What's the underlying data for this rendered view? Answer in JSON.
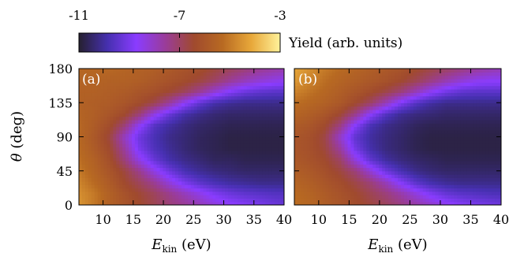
{
  "chart_data": [
    {
      "type": "heatmap",
      "panel_label": "(a)",
      "xlabel_main": "E",
      "xlabel_sub": "kin",
      "xlabel_unit": " (eV)",
      "ylabel_symbol": "θ",
      "ylabel_unit": " (deg)",
      "xlim": [
        6,
        40
      ],
      "ylim": [
        0,
        180
      ],
      "x_ticks": [
        10,
        15,
        20,
        25,
        30,
        35,
        40
      ],
      "y_ticks": [
        0,
        45,
        90,
        135,
        180
      ],
      "x": [
        6,
        8.5,
        11,
        13.5,
        16,
        18.5,
        21,
        23.5,
        26,
        28.5,
        31,
        33.5,
        36,
        38.5,
        40
      ],
      "y": [
        0,
        15,
        30,
        45,
        60,
        75,
        90,
        105,
        120,
        135,
        150,
        165,
        180
      ],
      "z": [
        [
          -4.5,
          -5.0,
          -5.6,
          -6.0,
          -6.4,
          -6.8,
          -7.2,
          -7.5,
          -7.9,
          -8.3,
          -8.6,
          -8.8,
          -9.0,
          -9.2,
          -9.3
        ],
        [
          -4.6,
          -5.0,
          -5.6,
          -6.1,
          -6.5,
          -6.9,
          -7.4,
          -7.9,
          -8.4,
          -8.9,
          -9.2,
          -9.4,
          -9.5,
          -9.6,
          -9.6
        ],
        [
          -4.8,
          -5.3,
          -5.8,
          -6.4,
          -6.9,
          -7.5,
          -8.3,
          -9.0,
          -9.5,
          -9.8,
          -10.0,
          -10.1,
          -10.2,
          -10.2,
          -10.2
        ],
        [
          -5.0,
          -5.5,
          -6.0,
          -6.6,
          -7.4,
          -8.4,
          -9.2,
          -9.8,
          -10.1,
          -10.3,
          -10.4,
          -10.5,
          -10.5,
          -10.5,
          -10.5
        ],
        [
          -5.2,
          -5.6,
          -6.2,
          -7.2,
          -8.4,
          -9.3,
          -9.9,
          -10.2,
          -10.4,
          -10.6,
          -10.6,
          -10.7,
          -10.7,
          -10.7,
          -10.7
        ],
        [
          -5.3,
          -5.8,
          -6.4,
          -7.6,
          -9.0,
          -9.7,
          -10.1,
          -10.4,
          -10.6,
          -10.7,
          -10.8,
          -10.8,
          -10.8,
          -10.8,
          -10.8
        ],
        [
          -5.4,
          -5.9,
          -6.6,
          -8.0,
          -9.2,
          -9.8,
          -10.2,
          -10.4,
          -10.6,
          -10.7,
          -10.8,
          -10.8,
          -10.8,
          -10.8,
          -10.8
        ],
        [
          -5.4,
          -5.8,
          -6.3,
          -7.2,
          -8.6,
          -9.6,
          -10.0,
          -10.3,
          -10.5,
          -10.6,
          -10.7,
          -10.7,
          -10.7,
          -10.7,
          -10.7
        ],
        [
          -5.5,
          -5.7,
          -6.0,
          -6.4,
          -7.2,
          -8.4,
          -9.3,
          -9.9,
          -10.2,
          -10.4,
          -10.5,
          -10.5,
          -10.5,
          -10.5,
          -10.5
        ],
        [
          -5.6,
          -5.7,
          -5.8,
          -6.0,
          -6.3,
          -6.8,
          -7.6,
          -8.6,
          -9.4,
          -9.9,
          -10.1,
          -10.2,
          -10.2,
          -10.2,
          -10.2
        ],
        [
          -5.6,
          -5.6,
          -5.7,
          -5.8,
          -6.0,
          -6.2,
          -6.5,
          -6.9,
          -7.5,
          -8.2,
          -8.8,
          -9.2,
          -9.4,
          -9.5,
          -9.5
        ],
        [
          -5.5,
          -5.5,
          -5.6,
          -5.6,
          -5.7,
          -5.9,
          -6.1,
          -6.3,
          -6.6,
          -7.0,
          -7.5,
          -7.9,
          -8.2,
          -8.4,
          -8.5
        ],
        [
          -5.4,
          -5.4,
          -5.4,
          -5.5,
          -5.6,
          -5.7,
          -5.9,
          -6.1,
          -6.3,
          -6.6,
          -6.9,
          -7.2,
          -7.5,
          -7.7,
          -7.8
        ]
      ]
    },
    {
      "type": "heatmap",
      "panel_label": "(b)",
      "xlabel_main": "E",
      "xlabel_sub": "kin",
      "xlabel_unit": " (eV)",
      "xlim": [
        6,
        40
      ],
      "ylim": [
        0,
        180
      ],
      "x_ticks": [
        10,
        15,
        20,
        25,
        30,
        35,
        40
      ],
      "x": [
        6,
        8.5,
        11,
        13.5,
        16,
        18.5,
        21,
        23.5,
        26,
        28.5,
        31,
        33.5,
        36,
        38.5,
        40
      ],
      "y": [
        0,
        15,
        30,
        45,
        60,
        75,
        90,
        105,
        120,
        135,
        150,
        165,
        180
      ],
      "z": [
        [
          -5.2,
          -5.4,
          -5.7,
          -6.0,
          -6.3,
          -6.6,
          -6.9,
          -7.3,
          -7.7,
          -8.1,
          -8.5,
          -8.8,
          -9.0,
          -9.1,
          -9.2
        ],
        [
          -5.3,
          -5.5,
          -5.8,
          -6.1,
          -6.4,
          -6.8,
          -7.2,
          -7.7,
          -8.3,
          -8.9,
          -9.3,
          -9.5,
          -9.6,
          -9.7,
          -9.7
        ],
        [
          -5.5,
          -5.7,
          -6.0,
          -6.3,
          -6.7,
          -7.2,
          -7.9,
          -8.8,
          -9.5,
          -9.9,
          -10.1,
          -10.2,
          -10.2,
          -10.2,
          -10.2
        ],
        [
          -5.7,
          -5.9,
          -6.2,
          -6.6,
          -7.2,
          -8.2,
          -9.2,
          -9.8,
          -10.2,
          -10.4,
          -10.5,
          -10.5,
          -10.5,
          -10.5,
          -10.5
        ],
        [
          -5.9,
          -6.1,
          -6.4,
          -7.0,
          -8.3,
          -9.4,
          -10.0,
          -10.3,
          -10.5,
          -10.6,
          -10.7,
          -10.7,
          -10.7,
          -10.7,
          -10.7
        ],
        [
          -6.0,
          -6.2,
          -6.6,
          -7.6,
          -9.1,
          -9.9,
          -10.3,
          -10.5,
          -10.7,
          -10.8,
          -10.8,
          -10.8,
          -10.8,
          -10.8,
          -10.8
        ],
        [
          -6.0,
          -6.2,
          -6.7,
          -8.1,
          -9.4,
          -10.0,
          -10.3,
          -10.5,
          -10.7,
          -10.8,
          -10.8,
          -10.8,
          -10.8,
          -10.8,
          -10.8
        ],
        [
          -5.8,
          -6.0,
          -6.4,
          -7.3,
          -8.8,
          -9.8,
          -10.2,
          -10.4,
          -10.6,
          -10.7,
          -10.7,
          -10.7,
          -10.7,
          -10.7,
          -10.7
        ],
        [
          -5.5,
          -5.7,
          -6.0,
          -6.5,
          -7.4,
          -8.7,
          -9.6,
          -10.1,
          -10.3,
          -10.4,
          -10.5,
          -10.5,
          -10.5,
          -10.5,
          -10.5
        ],
        [
          -5.2,
          -5.4,
          -5.6,
          -5.9,
          -6.4,
          -7.0,
          -7.9,
          -8.9,
          -9.6,
          -10.0,
          -10.2,
          -10.2,
          -10.2,
          -10.2,
          -10.2
        ],
        [
          -4.8,
          -5.1,
          -5.4,
          -5.7,
          -6.0,
          -6.3,
          -6.7,
          -7.2,
          -7.9,
          -8.6,
          -9.1,
          -9.4,
          -9.5,
          -9.5,
          -9.5
        ],
        [
          -4.4,
          -4.8,
          -5.2,
          -5.5,
          -5.7,
          -5.9,
          -6.1,
          -6.4,
          -6.8,
          -7.3,
          -7.8,
          -8.2,
          -8.5,
          -8.6,
          -8.6
        ],
        [
          -4.2,
          -4.6,
          -5.0,
          -5.3,
          -5.5,
          -5.7,
          -5.9,
          -6.1,
          -6.4,
          -6.7,
          -7.0,
          -7.3,
          -7.6,
          -7.8,
          -7.9
        ]
      ]
    }
  ],
  "colorbar": {
    "label": "Yield (arb. units)",
    "range": [
      -11,
      -3
    ],
    "ticks": [
      -11,
      -7,
      -3
    ],
    "colors": [
      "#262030",
      "#4630b0",
      "#8a3cff",
      "#9a3c9a",
      "#a04a2e",
      "#b86a22",
      "#e8a83a",
      "#fff29a"
    ]
  }
}
